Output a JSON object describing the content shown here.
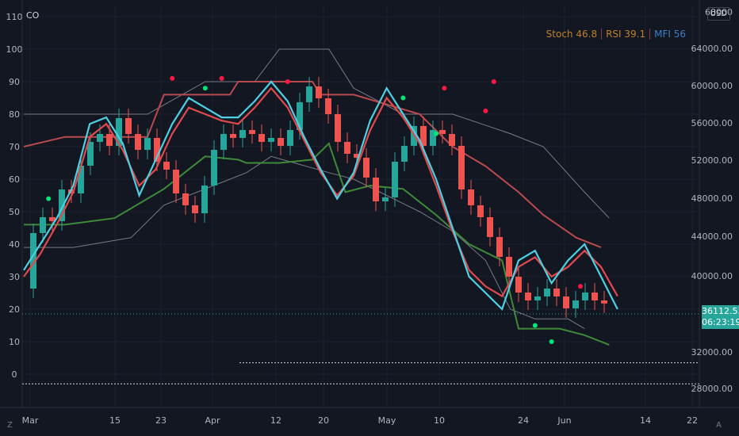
{
  "window": {
    "symbol_label": "CO",
    "currency_button": "USD",
    "axis_z_button": "Z",
    "axis_a_button": "A"
  },
  "price_tag": {
    "price": "36112.53",
    "countdown": "06:23:19"
  },
  "legend": [
    {
      "text": "Stoch 46.8",
      "color": "#c0802a"
    },
    {
      "text": "RSI 39.1",
      "color": "#c0802a"
    },
    {
      "text": "MFI 56",
      "color": "#3d7fc4"
    }
  ],
  "colors": {
    "background": "#131722",
    "up": "#26a69a",
    "down": "#ef5350",
    "grid": "#1e222d",
    "cyan_line": "#4dd0e1",
    "red_band": "#b94a4f",
    "green_band": "#3f8a3a",
    "gray_band": "#787b86"
  },
  "chart_data": {
    "type": "candlestick",
    "left_axis": {
      "ticks": [
        "110",
        "100",
        "90",
        "80",
        "70",
        "60",
        "50",
        "40",
        "30",
        "20",
        "10",
        "0"
      ]
    },
    "right_axis": {
      "ticks": [
        "68000",
        "64000.00",
        "60000.00",
        "56000.00",
        "52000.00",
        "48000.00",
        "44000.00",
        "40000.00",
        "32000.00",
        "28000.00"
      ],
      "scale": "linear"
    },
    "x_labels": [
      "Mar",
      "15",
      "23",
      "Apr",
      "12",
      "20",
      "May",
      "10",
      "24",
      "Jun",
      "14",
      "22"
    ],
    "close_series": [
      [
        0,
        38000
      ],
      [
        3,
        45000
      ],
      [
        6,
        47000
      ],
      [
        9,
        46500
      ],
      [
        12,
        50500
      ],
      [
        15,
        50000
      ],
      [
        18,
        53500
      ],
      [
        21,
        56500
      ],
      [
        24,
        57500
      ],
      [
        27,
        56000
      ],
      [
        30,
        59500
      ],
      [
        33,
        57500
      ],
      [
        36,
        55500
      ],
      [
        39,
        57000
      ],
      [
        42,
        54000
      ],
      [
        45,
        53000
      ],
      [
        48,
        50000
      ],
      [
        51,
        48500
      ],
      [
        54,
        47500
      ],
      [
        57,
        51000
      ],
      [
        60,
        55500
      ],
      [
        63,
        57500
      ],
      [
        66,
        57000
      ],
      [
        69,
        58000
      ],
      [
        72,
        57500
      ],
      [
        75,
        56500
      ],
      [
        78,
        57000
      ],
      [
        81,
        56000
      ],
      [
        84,
        58000
      ],
      [
        87,
        61500
      ],
      [
        90,
        63500
      ],
      [
        93,
        62000
      ],
      [
        96,
        60000
      ],
      [
        99,
        56500
      ],
      [
        102,
        55000
      ],
      [
        105,
        54500
      ],
      [
        108,
        52000
      ],
      [
        111,
        49000
      ],
      [
        114,
        49500
      ],
      [
        117,
        54000
      ],
      [
        120,
        56000
      ],
      [
        123,
        58500
      ],
      [
        126,
        56000
      ],
      [
        129,
        58000
      ],
      [
        132,
        57500
      ],
      [
        135,
        56000
      ],
      [
        138,
        50500
      ],
      [
        141,
        48500
      ],
      [
        144,
        47000
      ],
      [
        147,
        44500
      ],
      [
        150,
        42000
      ],
      [
        153,
        39500
      ],
      [
        156,
        37500
      ],
      [
        159,
        36500
      ],
      [
        162,
        37000
      ],
      [
        165,
        38000
      ],
      [
        168,
        37000
      ],
      [
        171,
        35500
      ],
      [
        174,
        36500
      ],
      [
        177,
        37500
      ],
      [
        180,
        36500
      ],
      [
        183,
        36112.53
      ]
    ],
    "oscillator_lines": {
      "stoch_line": [
        [
          0,
          32
        ],
        [
          4,
          40
        ],
        [
          8,
          48
        ],
        [
          12,
          58
        ],
        [
          16,
          77
        ],
        [
          20,
          79
        ],
        [
          24,
          71
        ],
        [
          28,
          55
        ],
        [
          32,
          66
        ],
        [
          36,
          77
        ],
        [
          40,
          85
        ],
        [
          44,
          82
        ],
        [
          48,
          79
        ],
        [
          52,
          79
        ],
        [
          56,
          84
        ],
        [
          60,
          90
        ],
        [
          64,
          84
        ],
        [
          68,
          73
        ],
        [
          72,
          63
        ],
        [
          76,
          54
        ],
        [
          80,
          62
        ],
        [
          84,
          78
        ],
        [
          88,
          88
        ],
        [
          92,
          80
        ],
        [
          96,
          72
        ],
        [
          100,
          60
        ],
        [
          104,
          45
        ],
        [
          108,
          30
        ],
        [
          112,
          25
        ],
        [
          116,
          20
        ],
        [
          120,
          35
        ],
        [
          124,
          38
        ],
        [
          128,
          28
        ],
        [
          132,
          35
        ],
        [
          136,
          40
        ],
        [
          140,
          30
        ],
        [
          144,
          20
        ]
      ],
      "rsi_line": [
        [
          0,
          30
        ],
        [
          4,
          37
        ],
        [
          8,
          46
        ],
        [
          12,
          56
        ],
        [
          16,
          73
        ],
        [
          20,
          77
        ],
        [
          24,
          69
        ],
        [
          28,
          58
        ],
        [
          32,
          63
        ],
        [
          36,
          74
        ],
        [
          40,
          82
        ],
        [
          44,
          80
        ],
        [
          48,
          78
        ],
        [
          52,
          77
        ],
        [
          56,
          82
        ],
        [
          60,
          88
        ],
        [
          64,
          82
        ],
        [
          68,
          72
        ],
        [
          72,
          62
        ],
        [
          76,
          55
        ],
        [
          80,
          61
        ],
        [
          84,
          75
        ],
        [
          88,
          85
        ],
        [
          92,
          79
        ],
        [
          96,
          71
        ],
        [
          100,
          58
        ],
        [
          104,
          44
        ],
        [
          108,
          32
        ],
        [
          112,
          27
        ],
        [
          116,
          24
        ],
        [
          120,
          33
        ],
        [
          124,
          36
        ],
        [
          128,
          30
        ],
        [
          132,
          33
        ],
        [
          136,
          38
        ],
        [
          140,
          33
        ],
        [
          144,
          24
        ]
      ]
    },
    "band_lines": {
      "upper_red": [
        [
          0,
          70
        ],
        [
          10,
          73
        ],
        [
          30,
          73
        ],
        [
          34,
          86
        ],
        [
          50,
          86
        ],
        [
          52,
          90
        ],
        [
          70,
          90
        ],
        [
          72,
          86
        ],
        [
          80,
          86
        ],
        [
          88,
          83
        ],
        [
          96,
          80
        ],
        [
          104,
          70
        ],
        [
          112,
          64
        ],
        [
          120,
          56
        ],
        [
          126,
          49
        ],
        [
          134,
          42
        ],
        [
          140,
          39
        ]
      ],
      "lower_green": [
        [
          0,
          46
        ],
        [
          10,
          46
        ],
        [
          22,
          48
        ],
        [
          34,
          57
        ],
        [
          44,
          67
        ],
        [
          52,
          66
        ],
        [
          54,
          65
        ],
        [
          62,
          65
        ],
        [
          70,
          66
        ],
        [
          74,
          71
        ],
        [
          78,
          56
        ],
        [
          84,
          58
        ],
        [
          92,
          57
        ],
        [
          100,
          49
        ],
        [
          108,
          40
        ],
        [
          116,
          35
        ],
        [
          120,
          14
        ],
        [
          130,
          14
        ],
        [
          136,
          12
        ],
        [
          142,
          9
        ]
      ],
      "gray_upper": [
        [
          0,
          80
        ],
        [
          10,
          80
        ],
        [
          30,
          80
        ],
        [
          44,
          90
        ],
        [
          56,
          90
        ],
        [
          62,
          100
        ],
        [
          74,
          100
        ],
        [
          80,
          88
        ],
        [
          92,
          80
        ],
        [
          104,
          80
        ],
        [
          118,
          74
        ],
        [
          126,
          70
        ],
        [
          136,
          56
        ],
        [
          142,
          48
        ]
      ],
      "gray_lower": [
        [
          0,
          39
        ],
        [
          12,
          39
        ],
        [
          26,
          42
        ],
        [
          34,
          52
        ],
        [
          48,
          59
        ],
        [
          54,
          62
        ],
        [
          60,
          67
        ],
        [
          74,
          62
        ],
        [
          80,
          60
        ],
        [
          88,
          55
        ],
        [
          96,
          50
        ],
        [
          104,
          44
        ],
        [
          112,
          35
        ],
        [
          118,
          20
        ],
        [
          124,
          17
        ],
        [
          132,
          17
        ],
        [
          136,
          14
        ]
      ]
    },
    "markers": {
      "red_dots": [
        [
          36,
          91
        ],
        [
          48,
          91
        ],
        [
          64,
          90
        ],
        [
          102,
          88
        ],
        [
          112,
          81
        ],
        [
          114,
          90
        ],
        [
          135,
          27
        ]
      ],
      "green_dots": [
        [
          6,
          54
        ],
        [
          44,
          88
        ],
        [
          92,
          85
        ],
        [
          100,
          74
        ],
        [
          124,
          15
        ],
        [
          128,
          10
        ]
      ]
    },
    "reference_lines": {
      "white_dotted_lower": -3,
      "white_dotted_upper": 3.5
    }
  }
}
